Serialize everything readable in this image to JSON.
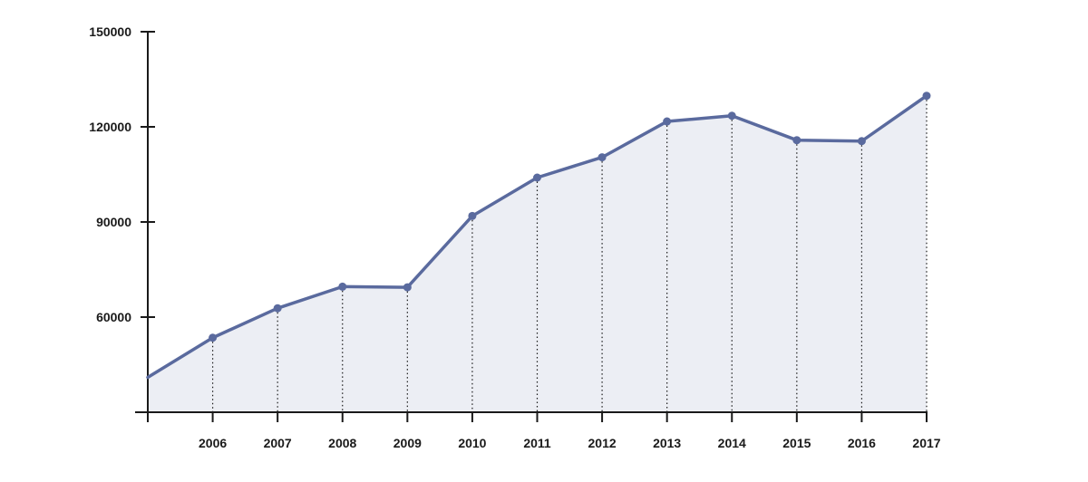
{
  "chart_data": {
    "type": "area",
    "title": "",
    "xlabel": "",
    "ylabel": "",
    "x_start": 2005,
    "x_end": 2017,
    "ylim": [
      30000,
      150000
    ],
    "yticks": [
      60000,
      90000,
      120000,
      150000
    ],
    "xtick_labels": [
      "2006",
      "2007",
      "2008",
      "2009",
      "2010",
      "2011",
      "2012",
      "2013",
      "2014",
      "2015",
      "2016",
      "2017"
    ],
    "grid": false,
    "series": [
      {
        "x": [
          2005,
          2006,
          2007,
          2008,
          2009,
          2010,
          2011,
          2012,
          2013,
          2014,
          2015,
          2016,
          2017
        ],
        "values": [
          41000,
          53500,
          62800,
          69600,
          69400,
          91900,
          104000,
          110400,
          121700,
          123500,
          115800,
          115500,
          129800
        ],
        "markers": [
          false,
          true,
          true,
          true,
          true,
          true,
          true,
          true,
          true,
          true,
          true,
          true,
          true
        ]
      }
    ],
    "colors": {
      "line": "#5a6a9e",
      "fill": "#eceef4",
      "axis": "#1a1a1a",
      "dropline": "#1a1a1a"
    }
  }
}
